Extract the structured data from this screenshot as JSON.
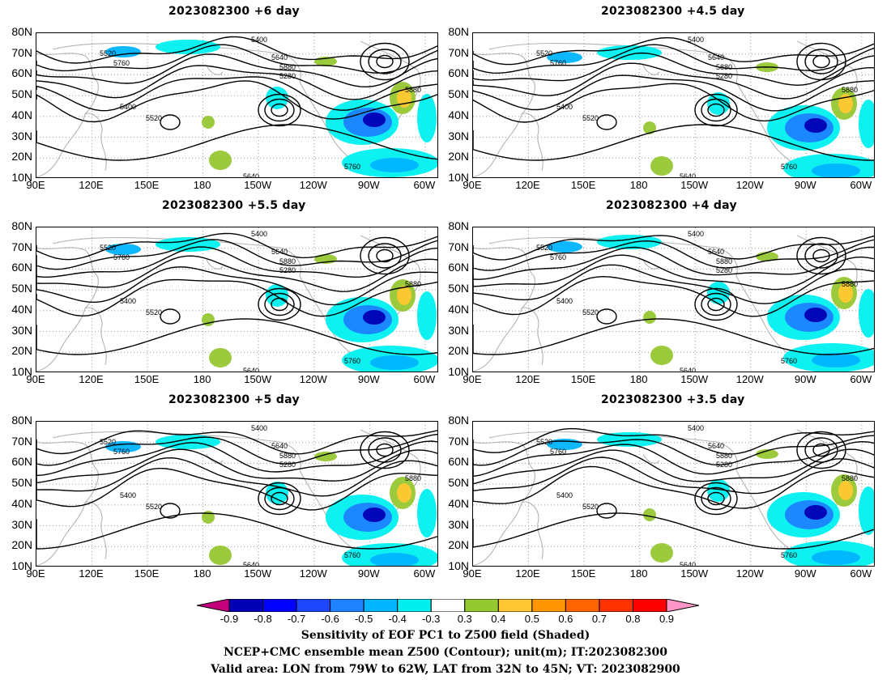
{
  "panels": [
    {
      "title": "2023082300  +6 day"
    },
    {
      "title": "2023082300  +4.5 day"
    },
    {
      "title": "2023082300  +5.5 day"
    },
    {
      "title": "2023082300  +4 day"
    },
    {
      "title": "2023082300  +5 day"
    },
    {
      "title": "2023082300  +3.5 day"
    }
  ],
  "axes": {
    "lat_labels": [
      "80N",
      "70N",
      "60N",
      "50N",
      "40N",
      "30N",
      "20N",
      "10N"
    ],
    "lon_labels": [
      "90E",
      "120E",
      "150E",
      "180",
      "150W",
      "120W",
      "90W",
      "60W"
    ]
  },
  "contour_labels": [
    "5280",
    "5400",
    "5520",
    "5640",
    "5760",
    "5880"
  ],
  "colorbar": {
    "ticks": [
      "-0.9",
      "-0.8",
      "-0.7",
      "-0.6",
      "-0.5",
      "-0.4",
      "-0.3",
      "0.3",
      "0.4",
      "0.5",
      "0.6",
      "0.7",
      "0.8",
      "0.9"
    ],
    "colors": [
      "#c4007c",
      "#0000b4",
      "#0000ff",
      "#1e46ff",
      "#1e82ff",
      "#00b4ff",
      "#00f0f0",
      "#ffffff",
      "#96c832",
      "#ffc832",
      "#ff9600",
      "#ff6400",
      "#ff3200",
      "#ff0000",
      "#ff96c8"
    ]
  },
  "footer": {
    "line1": "Sensitivity of EOF PC1 to Z500 field (Shaded)",
    "line2": "NCEP+CMC ensemble mean Z500 (Contour); unit(m); IT:2023082300",
    "line3": "Valid area: LON from 79W to 62W, LAT from 32N to 45N; VT: 2023082900"
  }
}
